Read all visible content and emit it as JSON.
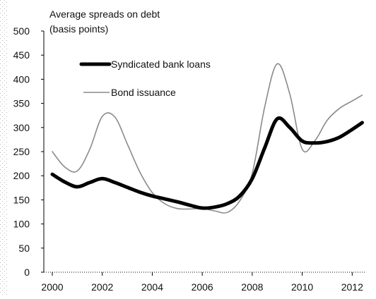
{
  "chart_data": {
    "type": "line",
    "title": "Average spreads on debt",
    "subtitle": "(basis points)",
    "xlabel": "",
    "ylabel": "",
    "x": [
      2000,
      2000.5,
      2001,
      2001.5,
      2002,
      2002.5,
      2003,
      2003.5,
      2004,
      2004.5,
      2005,
      2005.5,
      2006,
      2006.5,
      2007,
      2007.5,
      2008,
      2008.5,
      2009,
      2009.5,
      2010,
      2010.5,
      2011,
      2011.5,
      2012,
      2012.4
    ],
    "series": [
      {
        "name": "Syndicated bank loans",
        "values": [
          203,
          187,
          177,
          186,
          194,
          186,
          176,
          166,
          158,
          152,
          146,
          139,
          133,
          135,
          142,
          158,
          194,
          258,
          318,
          300,
          272,
          268,
          271,
          280,
          296,
          310
        ],
        "color": "#000000",
        "style": "thick"
      },
      {
        "name": "Bond issuance",
        "values": [
          250,
          218,
          210,
          255,
          323,
          322,
          266,
          208,
          165,
          142,
          132,
          131,
          132,
          127,
          124,
          148,
          205,
          343,
          432,
          370,
          255,
          272,
          315,
          340,
          355,
          367
        ],
        "color": "#8a8a8a",
        "style": "thin"
      }
    ],
    "ylim": [
      0,
      500
    ],
    "yticks": [
      0,
      50,
      100,
      150,
      200,
      250,
      300,
      350,
      400,
      450,
      500
    ],
    "xlim": [
      2000,
      2012.5
    ],
    "xticks": [
      2000,
      2002,
      2004,
      2006,
      2008,
      2010,
      2012
    ],
    "grid": false,
    "legend_position": "top-left"
  }
}
